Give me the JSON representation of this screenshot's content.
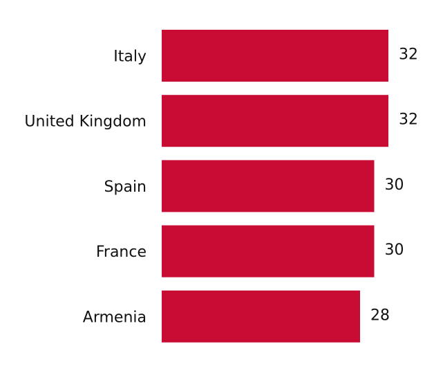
{
  "chart_data": {
    "type": "hbar",
    "categories": [
      "Italy",
      "United Kingdom",
      "Spain",
      "France",
      "Armenia"
    ],
    "values": [
      32,
      32,
      30,
      30,
      28
    ],
    "color": "#c90c33",
    "xlim": [
      0,
      32
    ]
  }
}
